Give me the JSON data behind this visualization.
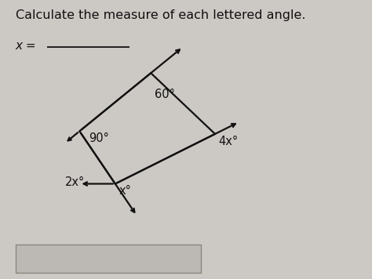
{
  "title": "Calculate the measure of each lettered angle.",
  "answer_line_label": "x =",
  "bg_color": "#ccc8c4",
  "text_color": "#111111",
  "title_fontsize": 11.5,
  "label_fontsize": 10.5,
  "answer_label_fontsize": 11,
  "angles": {
    "top_left": "90°",
    "top_right": "60°",
    "bottom_right": "4x°",
    "bottom_x": "x°",
    "bottom_2x": "2x°"
  },
  "line_color": "#111111",
  "line_width": 1.6,
  "answer_box_color": "#bcb8b4"
}
